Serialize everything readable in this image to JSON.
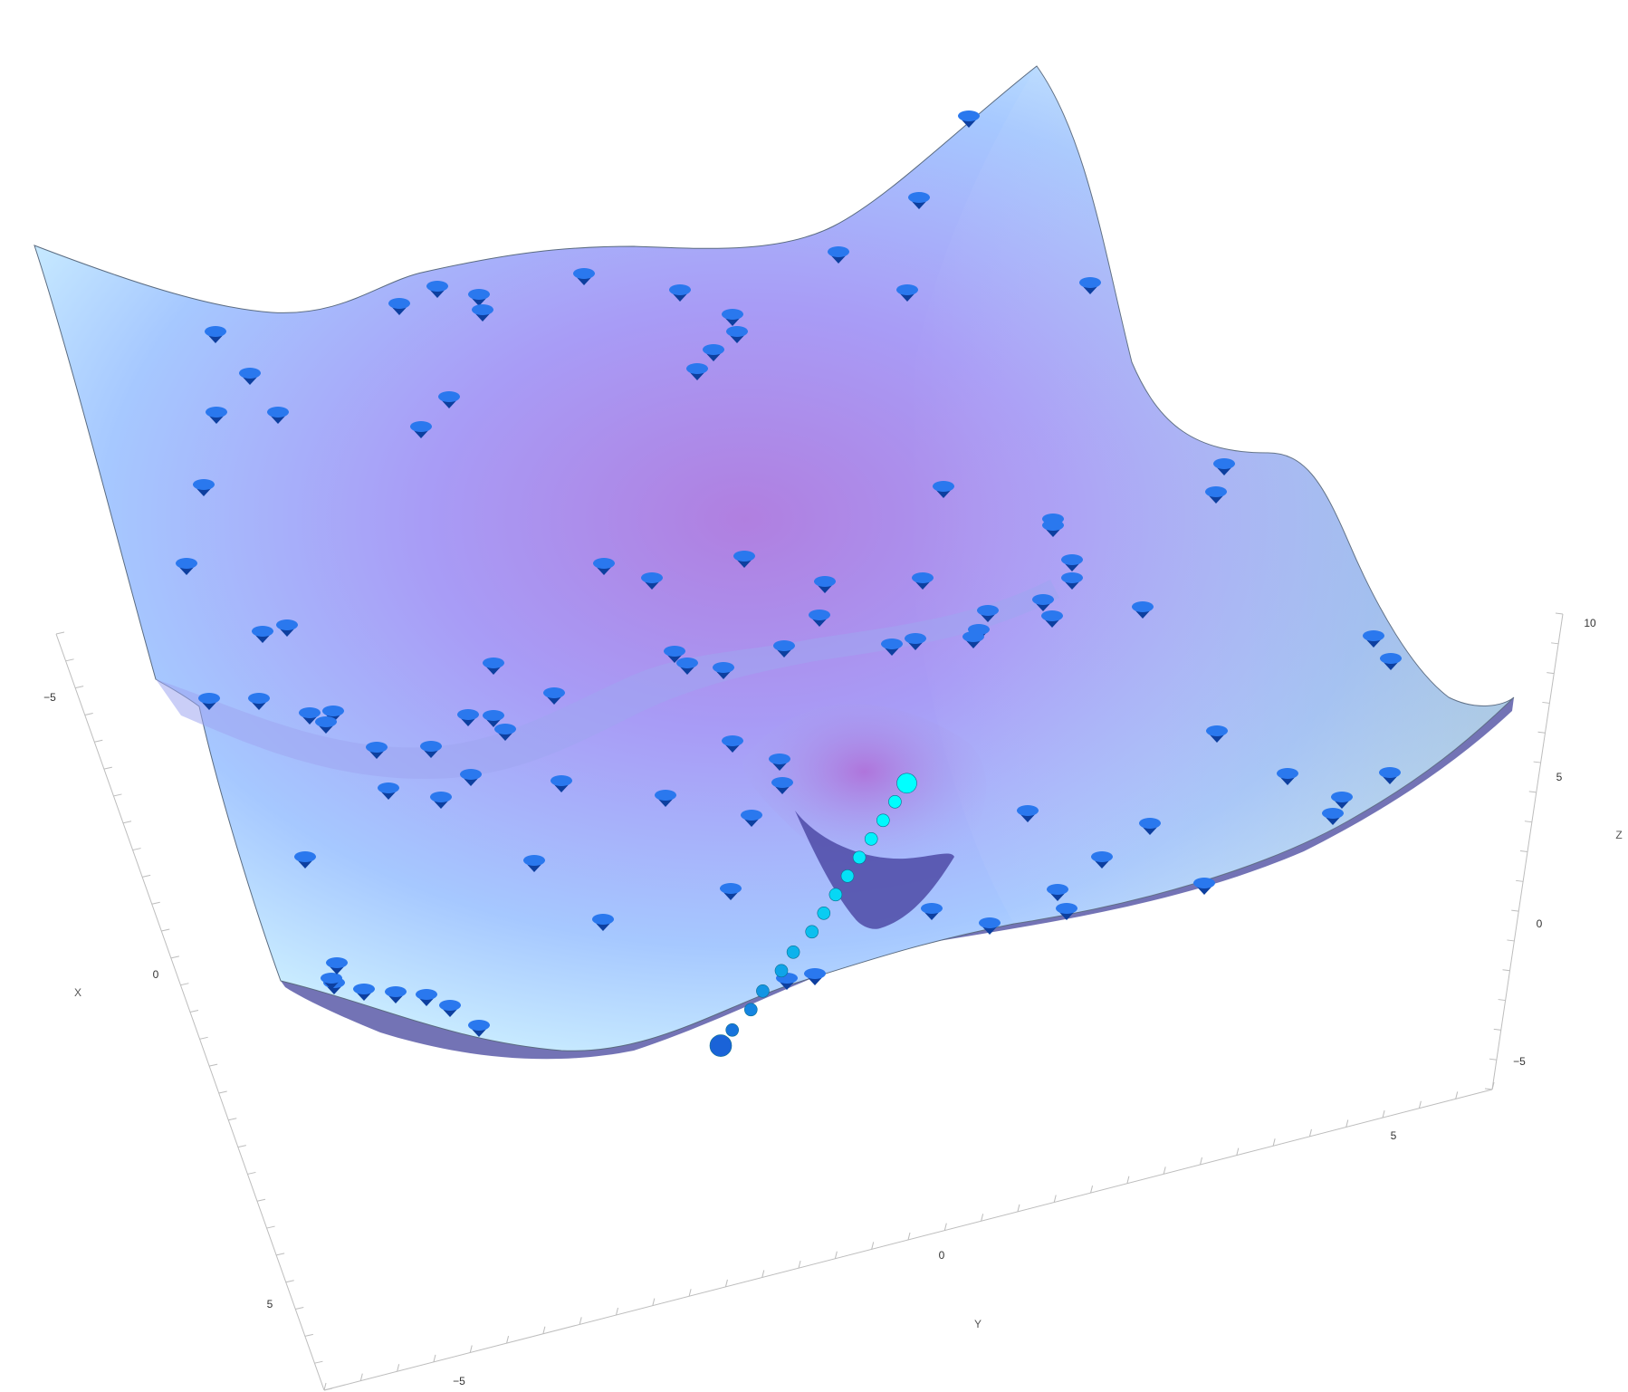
{
  "chart_data": {
    "type": "surface3d",
    "axes": {
      "x": {
        "label": "X",
        "ticks": [
          -5,
          0,
          5
        ]
      },
      "y": {
        "label": "Y",
        "ticks": [
          -5,
          0,
          5
        ]
      },
      "z": {
        "label": "Z",
        "ticks": [
          -5,
          0,
          5,
          10
        ]
      }
    },
    "surface": {
      "colors": {
        "low": "#b07fe0",
        "mid": "#a9b4ff",
        "high": "#d8fbff",
        "edge": "#5a5aa8"
      },
      "minimum": {
        "x": 1.8,
        "y": -1.8,
        "z": -0.5
      }
    },
    "markers": {
      "cone_color": "#1a63d8",
      "cone_count": 120
    },
    "descent_path": {
      "color_start": "#00ffff",
      "color_end": "#1a63d8",
      "points": [
        {
          "x": 0.4,
          "y": -0.1,
          "z": 5.0
        },
        {
          "x": 0.5,
          "y": -0.2,
          "z": 4.6
        },
        {
          "x": 0.6,
          "y": -0.3,
          "z": 4.2
        },
        {
          "x": 0.7,
          "y": -0.4,
          "z": 3.8
        },
        {
          "x": 0.8,
          "y": -0.5,
          "z": 3.4
        },
        {
          "x": 0.9,
          "y": -0.6,
          "z": 3.0
        },
        {
          "x": 1.0,
          "y": -0.7,
          "z": 2.6
        },
        {
          "x": 1.1,
          "y": -0.8,
          "z": 2.2
        },
        {
          "x": 1.2,
          "y": -0.9,
          "z": 1.8
        },
        {
          "x": 1.3,
          "y": -1.1,
          "z": 1.4
        },
        {
          "x": 1.4,
          "y": -1.2,
          "z": 1.0
        },
        {
          "x": 1.5,
          "y": -1.4,
          "z": 0.6
        },
        {
          "x": 1.6,
          "y": -1.5,
          "z": 0.2
        },
        {
          "x": 1.7,
          "y": -1.7,
          "z": -0.2
        },
        {
          "x": 1.8,
          "y": -1.8,
          "z": -0.5
        }
      ]
    }
  }
}
